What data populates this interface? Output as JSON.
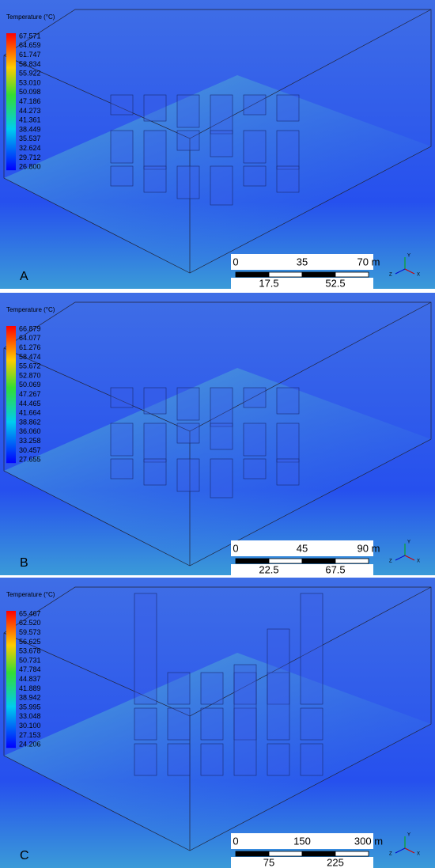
{
  "panels": [
    {
      "label": "A",
      "legend": {
        "title": "Temperature (°C)",
        "values": [
          "67.571",
          "64.659",
          "61.747",
          "58.834",
          "55.922",
          "53.010",
          "50.098",
          "47.186",
          "44.273",
          "41.361",
          "38.449",
          "35.537",
          "32.624",
          "29.712",
          "26.800"
        ]
      },
      "scale": {
        "top": [
          "0",
          "35",
          "70 m"
        ],
        "bottom": [
          "17.5",
          "52.5"
        ]
      },
      "axes": [
        "Y",
        "Z",
        "X"
      ]
    },
    {
      "label": "B",
      "legend": {
        "title": "Temperature (°C)",
        "values": [
          "66.879",
          "64.077",
          "61.276",
          "58.474",
          "55.672",
          "52.870",
          "50.069",
          "47.267",
          "44.465",
          "41.664",
          "38.862",
          "36.060",
          "33.258",
          "30.457",
          "27.655"
        ]
      },
      "scale": {
        "top": [
          "0",
          "45",
          "90 m"
        ],
        "bottom": [
          "22.5",
          "67.5"
        ]
      },
      "axes": [
        "Y",
        "Z",
        "X"
      ]
    },
    {
      "label": "C",
      "legend": {
        "title": "Temperature (°C)",
        "values": [
          "65.467",
          "62.520",
          "59.573",
          "56.625",
          "53.678",
          "50.731",
          "47.784",
          "44.837",
          "41.889",
          "38.942",
          "35.995",
          "33.048",
          "30.100",
          "27.153",
          "24.206"
        ]
      },
      "scale": {
        "top": [
          "0",
          "150",
          "300 m"
        ],
        "bottom": [
          "75",
          "225"
        ]
      },
      "axes": [
        "Y",
        "Z",
        "X"
      ]
    }
  ]
}
